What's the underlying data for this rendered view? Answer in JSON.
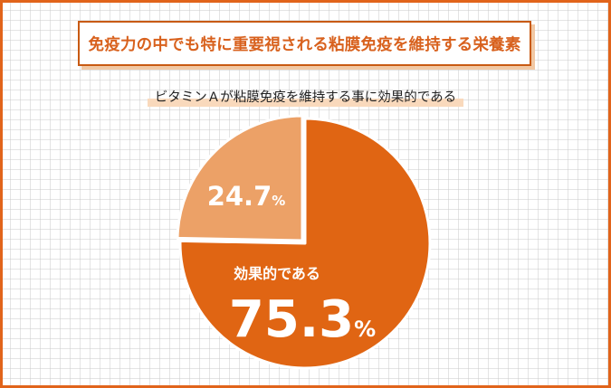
{
  "header": {
    "title": "免疫力の中でも特に重要視される粘膜免疫を維持する栄養素"
  },
  "chart_data": {
    "type": "pie",
    "title": "ビタミンＡが粘膜免疫を維持する事に効果的である",
    "slices": [
      {
        "label": "効果的である",
        "value": 75.3,
        "display": "75.3",
        "unit": "%",
        "color": "#e06513"
      },
      {
        "label": "",
        "value": 24.7,
        "display": "24.7",
        "unit": "%",
        "color": "#eca167"
      }
    ],
    "start_angle_deg": 0,
    "direction": "clockwise"
  }
}
